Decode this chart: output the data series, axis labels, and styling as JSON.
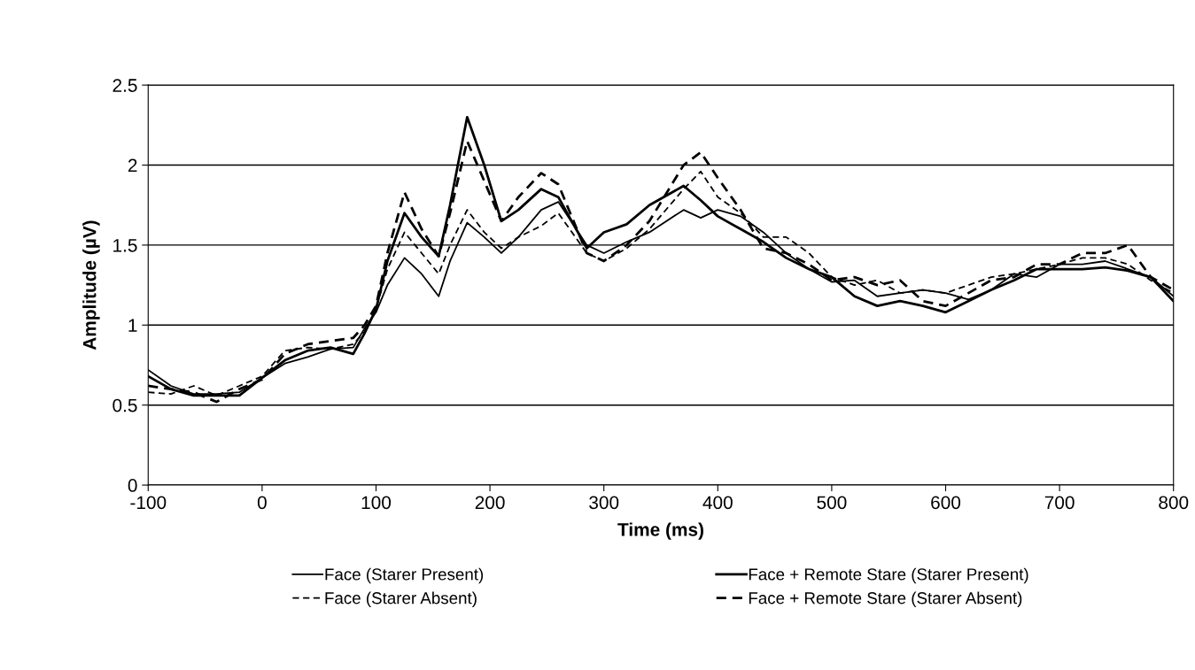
{
  "chart_data": {
    "type": "line",
    "xlabel": "Time (ms)",
    "ylabel": "Amplitude (µV)",
    "x": [
      -100,
      -80,
      -60,
      -40,
      -20,
      0,
      20,
      40,
      60,
      80,
      90,
      100,
      110,
      125,
      140,
      155,
      165,
      180,
      195,
      210,
      225,
      245,
      260,
      285,
      300,
      320,
      340,
      370,
      385,
      400,
      420,
      440,
      460,
      480,
      500,
      520,
      540,
      560,
      580,
      600,
      620,
      640,
      660,
      680,
      700,
      720,
      740,
      760,
      780,
      800
    ],
    "series": [
      {
        "name": "Face (Starer Present)",
        "color": "#000000",
        "line_style": "solid",
        "values": [
          0.72,
          0.62,
          0.57,
          0.57,
          0.58,
          0.67,
          0.76,
          0.8,
          0.85,
          0.86,
          0.98,
          1.08,
          1.25,
          1.42,
          1.32,
          1.18,
          1.4,
          1.64,
          1.55,
          1.45,
          1.55,
          1.72,
          1.77,
          1.5,
          1.45,
          1.52,
          1.58,
          1.72,
          1.67,
          1.72,
          1.68,
          1.58,
          1.45,
          1.35,
          1.27,
          1.28,
          1.18,
          1.2,
          1.22,
          1.2,
          1.16,
          1.22,
          1.32,
          1.3,
          1.38,
          1.38,
          1.4,
          1.35,
          1.3,
          1.18
        ]
      },
      {
        "name": "Face (Starer Absent)",
        "color": "#000000",
        "line_style": "dashed",
        "values": [
          0.58,
          0.57,
          0.62,
          0.56,
          0.62,
          0.68,
          0.84,
          0.86,
          0.85,
          0.88,
          0.96,
          1.1,
          1.35,
          1.58,
          1.45,
          1.32,
          1.5,
          1.72,
          1.58,
          1.48,
          1.55,
          1.62,
          1.7,
          1.45,
          1.4,
          1.48,
          1.6,
          1.85,
          1.96,
          1.8,
          1.7,
          1.55,
          1.55,
          1.45,
          1.3,
          1.25,
          1.28,
          1.2,
          1.22,
          1.2,
          1.25,
          1.3,
          1.32,
          1.35,
          1.38,
          1.42,
          1.42,
          1.38,
          1.28,
          1.2
        ]
      },
      {
        "name": "Face + Remote Stare (Starer Present)",
        "color": "#000000",
        "line_style": "solid",
        "values": [
          0.68,
          0.6,
          0.56,
          0.56,
          0.56,
          0.67,
          0.78,
          0.84,
          0.86,
          0.82,
          0.95,
          1.1,
          1.4,
          1.7,
          1.55,
          1.43,
          1.75,
          2.3,
          2.0,
          1.65,
          1.72,
          1.85,
          1.8,
          1.48,
          1.58,
          1.63,
          1.75,
          1.87,
          1.78,
          1.68,
          1.6,
          1.52,
          1.42,
          1.35,
          1.3,
          1.18,
          1.12,
          1.15,
          1.12,
          1.08,
          1.15,
          1.22,
          1.28,
          1.35,
          1.35,
          1.35,
          1.36,
          1.34,
          1.3,
          1.15
        ]
      },
      {
        "name": "Face + Remote Stare (Starer Absent)",
        "color": "#000000",
        "line_style": "dashed",
        "values": [
          0.62,
          0.6,
          0.58,
          0.52,
          0.6,
          0.66,
          0.82,
          0.88,
          0.9,
          0.92,
          1.0,
          1.12,
          1.45,
          1.83,
          1.6,
          1.43,
          1.7,
          2.15,
          1.9,
          1.65,
          1.8,
          1.95,
          1.88,
          1.45,
          1.4,
          1.5,
          1.65,
          2.0,
          2.08,
          1.92,
          1.72,
          1.48,
          1.45,
          1.38,
          1.28,
          1.3,
          1.25,
          1.28,
          1.15,
          1.12,
          1.2,
          1.28,
          1.3,
          1.38,
          1.38,
          1.45,
          1.45,
          1.5,
          1.3,
          1.22
        ]
      }
    ],
    "xlim": [
      -100,
      800
    ],
    "xticks": [
      -100,
      0,
      100,
      200,
      300,
      400,
      500,
      600,
      700,
      800
    ],
    "ylim": [
      0,
      2.5
    ],
    "yticks": [
      0,
      0.5,
      1,
      1.5,
      2,
      2.5
    ],
    "grid": "y",
    "legend": "bottom"
  }
}
